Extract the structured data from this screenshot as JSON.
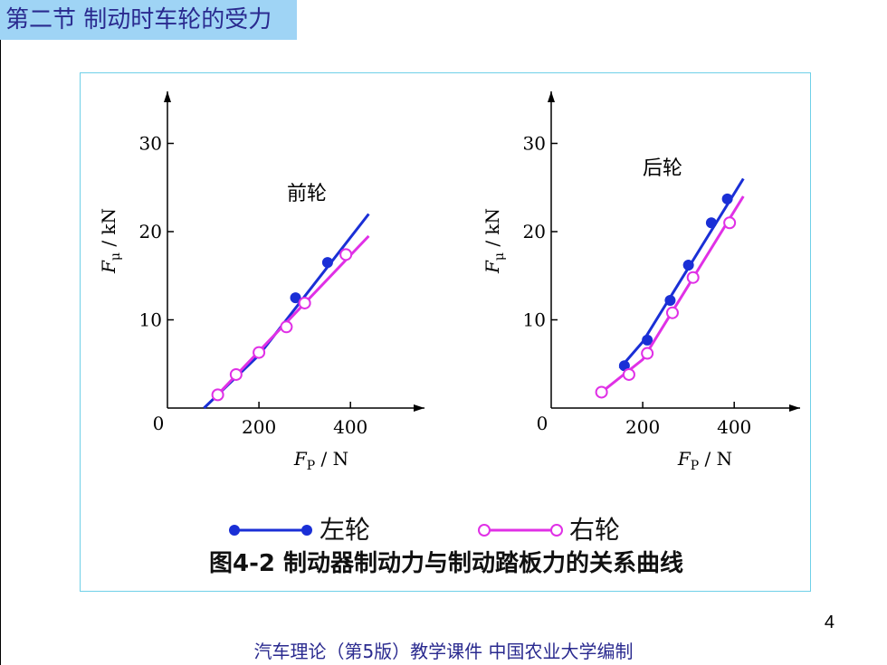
{
  "header": {
    "section_title": "第二节  制动时车轮的受力"
  },
  "figure": {
    "caption": "图4-2   制动器制动力与制动踏板力的关系曲线",
    "legend": [
      {
        "label": "左轮",
        "marker": "filled",
        "color": "#1a2fd6"
      },
      {
        "label": "右轮",
        "marker": "hollow",
        "color": "#e030e6"
      }
    ]
  },
  "chart_data": [
    {
      "type": "line",
      "title": "前轮",
      "xlabel": "F_P / N",
      "ylabel": "F_μ / kN",
      "xlim": [
        0,
        450
      ],
      "ylim": [
        0,
        35
      ],
      "x_ticks": [
        "0",
        "200",
        "400"
      ],
      "y_ticks": [
        "10",
        "20",
        "30"
      ],
      "series": [
        {
          "name": "左轮",
          "color": "#1a2fd6",
          "marker": "filled",
          "line": [
            [
              80,
              0
            ],
            [
              200,
              6
            ],
            [
              440,
              22
            ]
          ],
          "points": [
            [
              280,
              12.5
            ],
            [
              350,
              16.5
            ]
          ]
        },
        {
          "name": "右轮",
          "color": "#e030e6",
          "marker": "hollow",
          "line": [
            [
              100,
              1
            ],
            [
              440,
              19.5
            ]
          ],
          "points": [
            [
              110,
              1.5
            ],
            [
              150,
              3.8
            ],
            [
              200,
              6.3
            ],
            [
              260,
              9.2
            ],
            [
              300,
              11.9
            ],
            [
              390,
              17.4
            ]
          ]
        }
      ]
    },
    {
      "type": "line",
      "title": "后轮",
      "xlabel": "F_P / N",
      "ylabel": "F_μ / kN",
      "xlim": [
        0,
        450
      ],
      "ylim": [
        0,
        35
      ],
      "x_ticks": [
        "0",
        "200",
        "400"
      ],
      "y_ticks": [
        "10",
        "20",
        "30"
      ],
      "series": [
        {
          "name": "左轮",
          "color": "#1a2fd6",
          "marker": "filled",
          "line": [
            [
              150,
              4.5
            ],
            [
              200,
              7.5
            ],
            [
              420,
              26
            ]
          ],
          "points": [
            [
              160,
              4.8
            ],
            [
              210,
              7.7
            ],
            [
              260,
              12.2
            ],
            [
              300,
              16.2
            ],
            [
              350,
              21
            ],
            [
              385,
              23.7
            ]
          ]
        },
        {
          "name": "右轮",
          "color": "#e030e6",
          "marker": "hollow",
          "line": [
            [
              110,
              1.8
            ],
            [
              200,
              5.5
            ],
            [
              420,
              24
            ]
          ],
          "points": [
            [
              110,
              1.8
            ],
            [
              170,
              3.8
            ],
            [
              210,
              6.2
            ],
            [
              265,
              10.8
            ],
            [
              310,
              14.8
            ],
            [
              390,
              21
            ]
          ]
        }
      ]
    }
  ],
  "page_number": "4",
  "footer": {
    "text": "汽车理论（第5版）教学课件   中国农业大学编制"
  }
}
